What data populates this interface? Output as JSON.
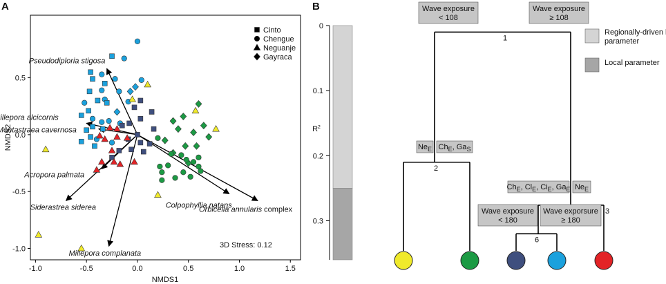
{
  "chart_data": [
    {
      "type": "scatter",
      "panel": "A",
      "xlabel": "NMDS1",
      "ylabel": "NMDS2",
      "xlim": [
        -1.05,
        1.6
      ],
      "ylim": [
        -1.1,
        1.05
      ],
      "xticks": [
        -1.0,
        -0.5,
        0.0,
        0.5,
        1.0,
        1.5
      ],
      "xtick_labels": [
        "-1.0",
        "-0.5",
        "0.0",
        "0.5",
        "1.0",
        "1.5"
      ],
      "yticks": [
        0.5,
        0.0,
        -0.5,
        -1.0
      ],
      "ytick_labels": [
        "0.5",
        "0.0",
        "-0.5",
        "-1.0"
      ],
      "stress_label": "3D Stress: 0.12",
      "legend": [
        {
          "name": "Cinto",
          "marker": "square"
        },
        {
          "name": "Chengue",
          "marker": "circle"
        },
        {
          "name": "Neguanje",
          "marker": "triangle"
        },
        {
          "name": "Gayraca",
          "marker": "diamond"
        }
      ],
      "groups": [
        {
          "name": "blue",
          "color": "#1ba1dd",
          "points": [
            {
              "m": "circle",
              "x": 0.0,
              "y": 0.82
            },
            {
              "m": "circle",
              "x": -0.13,
              "y": 0.67
            },
            {
              "m": "circle",
              "x": -0.35,
              "y": 0.53
            },
            {
              "m": "circle",
              "x": -0.22,
              "y": 0.49
            },
            {
              "m": "circle",
              "x": 0.04,
              "y": 0.48
            },
            {
              "m": "circle",
              "x": -0.35,
              "y": 0.39
            },
            {
              "m": "circle",
              "x": -0.18,
              "y": 0.38
            },
            {
              "m": "circle",
              "x": -0.32,
              "y": 0.31
            },
            {
              "m": "circle",
              "x": -0.52,
              "y": 0.28
            },
            {
              "m": "circle",
              "x": -0.09,
              "y": 0.29
            },
            {
              "m": "circle",
              "x": -0.44,
              "y": 0.14
            },
            {
              "m": "circle",
              "x": -0.35,
              "y": 0.11
            },
            {
              "m": "circle",
              "x": -0.28,
              "y": 0.12
            },
            {
              "m": "circle",
              "x": -0.17,
              "y": 0.1
            },
            {
              "m": "circle",
              "x": -0.4,
              "y": -0.04
            },
            {
              "m": "circle",
              "x": -0.25,
              "y": -0.07
            },
            {
              "m": "square",
              "x": -0.25,
              "y": 0.69
            },
            {
              "m": "square",
              "x": -0.46,
              "y": 0.55
            },
            {
              "m": "square",
              "x": -0.44,
              "y": 0.49
            },
            {
              "m": "square",
              "x": -0.32,
              "y": 0.45
            },
            {
              "m": "square",
              "x": -0.47,
              "y": 0.38
            },
            {
              "m": "square",
              "x": -0.39,
              "y": 0.3
            },
            {
              "m": "square",
              "x": -0.3,
              "y": 0.28
            },
            {
              "m": "square",
              "x": -0.48,
              "y": 0.21
            },
            {
              "m": "square",
              "x": -0.55,
              "y": 0.17
            },
            {
              "m": "square",
              "x": -0.44,
              "y": 0.07
            },
            {
              "m": "square",
              "x": -0.5,
              "y": 0.04
            },
            {
              "m": "square",
              "x": -0.34,
              "y": 0.05
            },
            {
              "m": "square",
              "x": -0.46,
              "y": -0.02
            },
            {
              "m": "square",
              "x": -0.55,
              "y": -0.06
            },
            {
              "m": "square",
              "x": -0.42,
              "y": -0.1
            },
            {
              "m": "diamond",
              "x": -0.02,
              "y": 0.42
            },
            {
              "m": "diamond",
              "x": -0.07,
              "y": 0.38
            },
            {
              "m": "diamond",
              "x": -0.2,
              "y": 0.2
            }
          ]
        },
        {
          "name": "navy",
          "color": "#3f4f7e",
          "points": [
            {
              "m": "square",
              "x": 0.03,
              "y": 0.3
            },
            {
              "m": "square",
              "x": -0.03,
              "y": 0.24
            },
            {
              "m": "square",
              "x": 0.14,
              "y": 0.2
            },
            {
              "m": "square",
              "x": 0.03,
              "y": 0.14
            },
            {
              "m": "square",
              "x": -0.08,
              "y": 0.1
            },
            {
              "m": "square",
              "x": -0.15,
              "y": 0.08
            },
            {
              "m": "square",
              "x": 0.16,
              "y": 0.05
            },
            {
              "m": "square",
              "x": 0.0,
              "y": 0.0
            },
            {
              "m": "square",
              "x": -0.09,
              "y": -0.04
            },
            {
              "m": "square",
              "x": 0.03,
              "y": -0.07
            },
            {
              "m": "square",
              "x": 0.12,
              "y": -0.08
            },
            {
              "m": "square",
              "x": -0.18,
              "y": -0.14
            },
            {
              "m": "square",
              "x": -0.06,
              "y": -0.13
            },
            {
              "m": "square",
              "x": 0.06,
              "y": -0.15
            },
            {
              "m": "square",
              "x": -0.25,
              "y": -0.2
            }
          ]
        },
        {
          "name": "red",
          "color": "#e32326",
          "points": [
            {
              "m": "triangle",
              "x": -0.27,
              "y": 0.06
            },
            {
              "m": "triangle",
              "x": -0.2,
              "y": 0.05
            },
            {
              "m": "triangle",
              "x": -0.37,
              "y": -0.01
            },
            {
              "m": "triangle",
              "x": -0.32,
              "y": -0.04
            },
            {
              "m": "triangle",
              "x": -0.2,
              "y": -0.02
            },
            {
              "m": "triangle",
              "x": -0.1,
              "y": -0.03
            },
            {
              "m": "triangle",
              "x": -0.25,
              "y": -0.14
            },
            {
              "m": "triangle",
              "x": -0.35,
              "y": -0.24
            },
            {
              "m": "triangle",
              "x": -0.23,
              "y": -0.24
            },
            {
              "m": "triangle",
              "x": -0.17,
              "y": -0.26
            },
            {
              "m": "triangle",
              "x": -0.03,
              "y": -0.24
            },
            {
              "m": "triangle",
              "x": -0.4,
              "y": -0.31
            }
          ]
        },
        {
          "name": "yellow",
          "color": "#f0ea2b",
          "points": [
            {
              "m": "triangle",
              "x": 0.1,
              "y": 0.44
            },
            {
              "m": "triangle",
              "x": -0.05,
              "y": 0.31
            },
            {
              "m": "triangle",
              "x": 0.57,
              "y": 0.21
            },
            {
              "m": "triangle",
              "x": 0.77,
              "y": 0.05
            },
            {
              "m": "triangle",
              "x": -0.9,
              "y": -0.13
            },
            {
              "m": "triangle",
              "x": 0.2,
              "y": -0.53
            },
            {
              "m": "triangle",
              "x": -0.97,
              "y": -0.88
            },
            {
              "m": "triangle",
              "x": -0.55,
              "y": -1.0
            }
          ]
        },
        {
          "name": "green",
          "color": "#1c9a44",
          "points": [
            {
              "m": "diamond",
              "x": 0.6,
              "y": 0.27
            },
            {
              "m": "diamond",
              "x": 0.45,
              "y": 0.16
            },
            {
              "m": "diamond",
              "x": 0.35,
              "y": 0.12
            },
            {
              "m": "diamond",
              "x": 0.65,
              "y": 0.08
            },
            {
              "m": "diamond",
              "x": 0.4,
              "y": 0.05
            },
            {
              "m": "diamond",
              "x": 0.55,
              "y": 0.02
            },
            {
              "m": "diamond",
              "x": 0.7,
              "y": -0.02
            },
            {
              "m": "diamond",
              "x": 0.27,
              "y": -0.05
            },
            {
              "m": "diamond",
              "x": 0.47,
              "y": -0.1
            },
            {
              "m": "diamond",
              "x": 0.58,
              "y": -0.1
            },
            {
              "m": "diamond",
              "x": 0.35,
              "y": -0.16
            },
            {
              "m": "diamond",
              "x": 0.5,
              "y": -0.25
            },
            {
              "m": "circle",
              "x": 0.2,
              "y": -0.03
            },
            {
              "m": "circle",
              "x": 0.33,
              "y": -0.17
            },
            {
              "m": "circle",
              "x": 0.43,
              "y": -0.18
            },
            {
              "m": "circle",
              "x": 0.48,
              "y": -0.22
            },
            {
              "m": "circle",
              "x": 0.6,
              "y": -0.2
            },
            {
              "m": "circle",
              "x": 0.55,
              "y": -0.24
            },
            {
              "m": "circle",
              "x": 0.3,
              "y": -0.27
            },
            {
              "m": "circle",
              "x": 0.22,
              "y": -0.28
            },
            {
              "m": "circle",
              "x": 0.6,
              "y": -0.28
            },
            {
              "m": "circle",
              "x": 0.62,
              "y": -0.32
            },
            {
              "m": "circle",
              "x": 0.24,
              "y": -0.33
            },
            {
              "m": "circle",
              "x": 0.45,
              "y": -0.33
            },
            {
              "m": "circle",
              "x": 0.52,
              "y": -0.37
            },
            {
              "m": "circle",
              "x": 0.37,
              "y": -0.38
            },
            {
              "m": "circle",
              "x": 0.24,
              "y": -0.4
            }
          ]
        }
      ],
      "vectors": [
        {
          "label": "Pseudodiploria stigosa",
          "x": -0.3,
          "y": 0.58
        },
        {
          "label": "Millepora alcicornis",
          "x": -0.5,
          "y": 0.1
        },
        {
          "label": "Montastraea cavernosa",
          "x": -0.38,
          "y": 0.05
        },
        {
          "label": "Acropora palmata",
          "x": -0.35,
          "y": -0.3
        },
        {
          "label": "Siderastrea siderea",
          "x": -0.7,
          "y": -0.58
        },
        {
          "label": "Millepora complanata",
          "x": -0.28,
          "y": -0.98
        },
        {
          "label": "Colpophyllia natans",
          "x": 0.9,
          "y": -0.52
        },
        {
          "label": "Orbicella annularis",
          "suffix": "complex",
          "x": 1.18,
          "y": -0.58
        }
      ]
    },
    {
      "type": "tree",
      "panel": "B",
      "ylabel": "R²",
      "ylim": [
        0,
        0.36
      ],
      "yticks": [
        0,
        0.1,
        0.2,
        0.3
      ],
      "ytick_labels": [
        "0",
        "0.1",
        "0.2",
        "0.3"
      ],
      "r2_bar_segments": [
        {
          "from": 0,
          "to": 0.25,
          "type": "regional"
        },
        {
          "from": 0.25,
          "to": 0.36,
          "type": "local"
        }
      ],
      "legend": [
        {
          "label": "Regionally-driven local parameter",
          "type": "regional"
        },
        {
          "label": "Local parameter",
          "type": "local"
        }
      ],
      "splits": [
        {
          "id": "1",
          "r2": 0.01,
          "left": "Wave exposure < 108",
          "right": "Wave exposure ≥ 108"
        },
        {
          "id": "2",
          "r2": 0.21,
          "left": "Ne",
          "left_sub": "E",
          "right": "Ch",
          "right_sub": "E",
          "right_extra": "Ga",
          "right_extra_sub": "S"
        },
        {
          "id": "3",
          "r2": 0.276,
          "left": "Ch",
          "left_sub": "E",
          "left_mid": [
            "Cl",
            "Ci"
          ],
          "left_mid_sub": [
            "E",
            "E"
          ],
          "left_end": "Ga",
          "left_end_sub": "E",
          "right": "Ne",
          "right_sub": "E"
        },
        {
          "id": "6",
          "r2": 0.32,
          "left": "Wave exposure < 180",
          "right": "Wave exporsure ≥ 180"
        }
      ],
      "leaves": [
        {
          "group": "yellow",
          "color": "#f0ea2b"
        },
        {
          "group": "green",
          "color": "#1c9a44"
        },
        {
          "group": "navy",
          "color": "#3f4f7e"
        },
        {
          "group": "blue",
          "color": "#1ba1dd"
        },
        {
          "group": "red",
          "color": "#e32326"
        }
      ]
    }
  ],
  "colors": {
    "regional": "#d4d4d4",
    "local": "#a6a6a6",
    "box_fill": "#c6c6c6",
    "line": "#000000"
  },
  "panels": {
    "a_label": "A",
    "b_label": "B"
  }
}
